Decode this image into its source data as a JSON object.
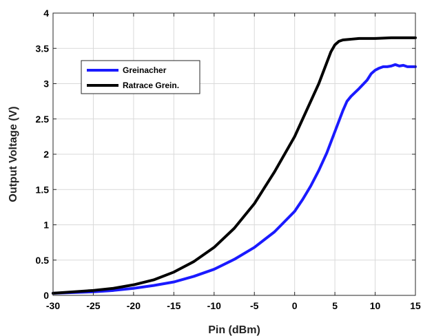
{
  "chart_data": {
    "type": "line",
    "title": "",
    "xlabel": "Pin (dBm)",
    "ylabel": "Output Voltage (V)",
    "xlim": [
      -30,
      15
    ],
    "ylim": [
      0,
      4
    ],
    "xticks": [
      -30,
      -25,
      -20,
      -15,
      -10,
      -5,
      0,
      5,
      10,
      15
    ],
    "yticks": [
      0,
      0.5,
      1,
      1.5,
      2,
      2.5,
      3,
      3.5,
      4
    ],
    "grid": true,
    "legend_position": "upper-left",
    "series": [
      {
        "name": "Greinacher",
        "color": "#1a1aff",
        "x": [
          -30,
          -27.5,
          -25,
          -22.5,
          -20,
          -17.5,
          -15,
          -12.5,
          -10,
          -7.5,
          -5,
          -2.5,
          0,
          1,
          2,
          3,
          4,
          5,
          6,
          6.5,
          7,
          8,
          9,
          9.5,
          10,
          10.5,
          11,
          11.5,
          12,
          12.5,
          13,
          13.5,
          14,
          15
        ],
        "y": [
          0.03,
          0.04,
          0.05,
          0.07,
          0.1,
          0.14,
          0.19,
          0.27,
          0.37,
          0.51,
          0.68,
          0.9,
          1.19,
          1.36,
          1.55,
          1.77,
          2.02,
          2.32,
          2.62,
          2.75,
          2.82,
          2.93,
          3.05,
          3.14,
          3.19,
          3.22,
          3.24,
          3.24,
          3.25,
          3.27,
          3.25,
          3.26,
          3.24,
          3.24
        ]
      },
      {
        "name": "Ratrace Grein.",
        "color": "#000000",
        "x": [
          -30,
          -27.5,
          -25,
          -22.5,
          -20,
          -17.5,
          -15,
          -12.5,
          -10,
          -7.5,
          -5,
          -2.5,
          0,
          1,
          2,
          3,
          4,
          4.5,
          5,
          5.5,
          6,
          7,
          8,
          10,
          12,
          15
        ],
        "y": [
          0.03,
          0.05,
          0.07,
          0.1,
          0.15,
          0.22,
          0.33,
          0.48,
          0.68,
          0.95,
          1.3,
          1.75,
          2.25,
          2.5,
          2.75,
          3.0,
          3.3,
          3.45,
          3.55,
          3.6,
          3.62,
          3.63,
          3.64,
          3.64,
          3.65,
          3.65
        ]
      }
    ]
  }
}
